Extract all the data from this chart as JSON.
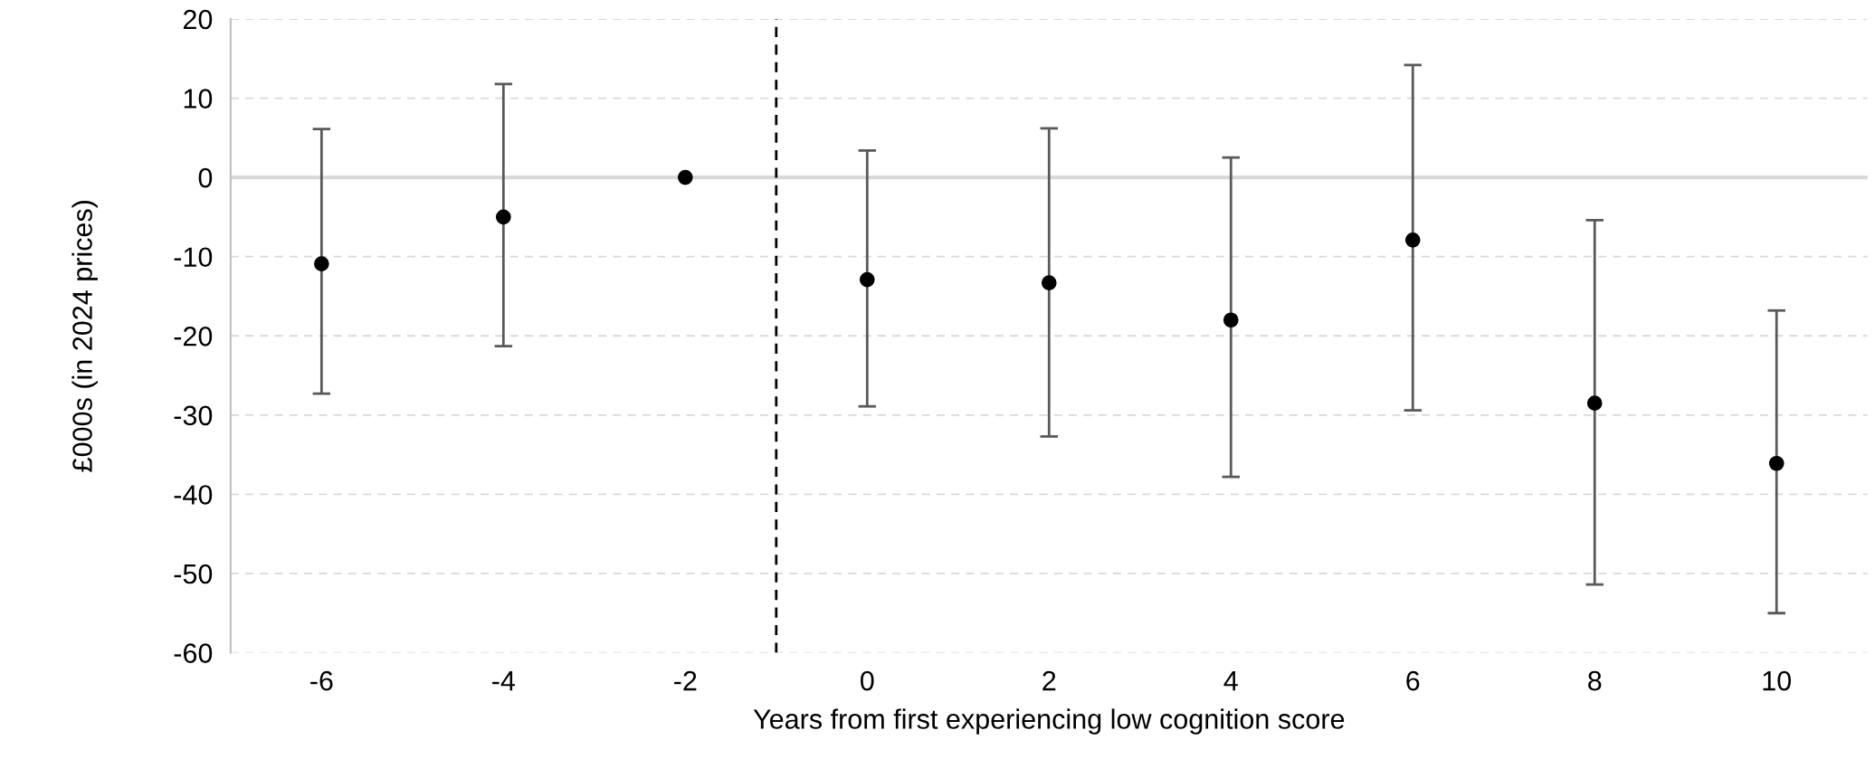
{
  "chart_data": {
    "type": "scatter",
    "xlabel": "Years from first experiencing low cognition score",
    "ylabel": "£000s (in 2024 prices)",
    "x": [
      -6,
      -4,
      -2,
      0,
      2,
      4,
      6,
      8,
      10
    ],
    "series": [
      {
        "color": "#000000",
        "values": [
          -10.9,
          -5.0,
          0,
          -12.9,
          -13.3,
          -18.0,
          -7.9,
          -28.5,
          -36.1
        ],
        "errors": [
          [
            -27.3,
            6.1
          ],
          [
            -21.3,
            11.8
          ],
          null,
          [
            -28.9,
            3.4
          ],
          [
            -32.7,
            6.2
          ],
          [
            -37.8,
            2.5
          ],
          [
            -29.4,
            14.2
          ],
          [
            -51.4,
            -5.4
          ],
          [
            -55.0,
            -16.8
          ]
        ]
      }
    ],
    "xlim": [
      -7,
      11
    ],
    "xticks": [
      -6,
      -4,
      -2,
      0,
      2,
      4,
      6,
      8,
      10
    ],
    "ylim": [
      -60,
      20
    ],
    "yticks": [
      -60,
      -50,
      -40,
      -30,
      -20,
      -10,
      0,
      10,
      20
    ],
    "grid": "y",
    "marker": "circle",
    "ref_lines": [
      {
        "axis": "y",
        "value": 0,
        "color": "#d9d9d9",
        "line_style": "solid"
      },
      {
        "axis": "x",
        "value": -1,
        "color": "#000000",
        "line_style": "dashed"
      }
    ]
  }
}
